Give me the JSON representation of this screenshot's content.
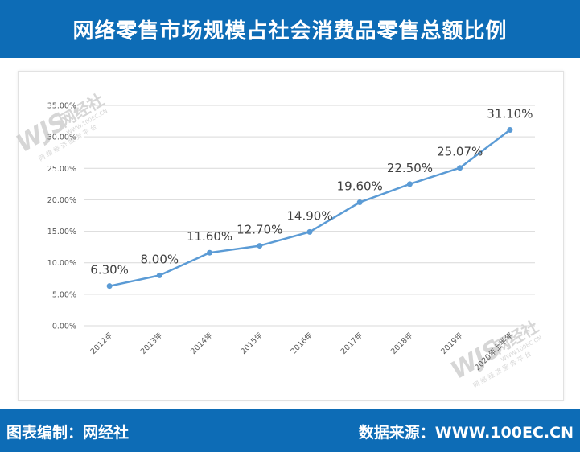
{
  "header": {
    "title": "网络零售市场规模占社会消费品零售总额比例"
  },
  "footer": {
    "editor": "图表编制：网经社",
    "source": "数据来源：WWW.100EC.CN"
  },
  "watermark": {
    "logo_text": "WJS",
    "brand": "网经社",
    "url": "WWW.100EC.CN",
    "tagline": "网 络 经 济 服 务 平 台"
  },
  "colors": {
    "header_bg": "#0d6cb6",
    "line": "#5b9bd5",
    "grid": "#d9d9d9",
    "watermark": "#c9c9c9"
  },
  "chart_data": {
    "type": "line",
    "title": "",
    "xlabel": "",
    "ylabel": "",
    "categories": [
      "2012年",
      "2013年",
      "2014年",
      "2015年",
      "2016年",
      "2017年",
      "2018年",
      "2019年",
      "2020年上半年"
    ],
    "values": [
      6.3,
      8.0,
      11.6,
      12.7,
      14.9,
      19.6,
      22.5,
      25.07,
      31.1
    ],
    "data_labels": [
      "6.30%",
      "8.00%",
      "11.60%",
      "12.70%",
      "14.90%",
      "19.60%",
      "22.50%",
      "25.07%",
      "31.10%"
    ],
    "y_ticks": [
      0,
      5,
      10,
      15,
      20,
      25,
      30,
      35
    ],
    "y_tick_labels": [
      "0.00%",
      "5.00%",
      "10.00%",
      "15.00%",
      "20.00%",
      "25.00%",
      "30.00%",
      "35.00%"
    ],
    "ylim": [
      0,
      35
    ],
    "grid": true,
    "legend": "none"
  }
}
